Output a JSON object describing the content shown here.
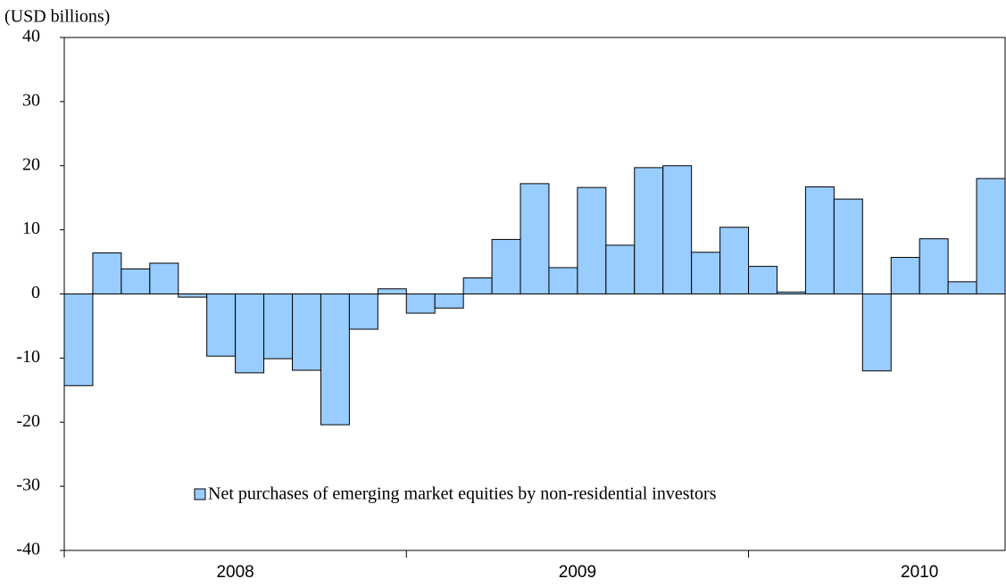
{
  "chart_data": {
    "type": "bar",
    "y_axis_label": "(USD billions)",
    "categories": [
      null,
      null,
      null,
      null,
      null,
      null,
      null,
      null,
      null,
      null,
      null,
      null,
      null,
      null,
      null,
      null,
      null,
      null,
      null,
      null,
      null,
      null,
      null,
      null,
      null,
      null,
      null,
      null,
      null,
      null,
      null,
      null,
      null
    ],
    "x_groups": [
      "2008",
      "2009",
      "2010"
    ],
    "series": [
      {
        "name": "Net purchases of emerging market equities by non-residential investors",
        "color": "#99ccff",
        "values": [
          -14.3,
          6.4,
          3.9,
          4.8,
          -0.5,
          -9.7,
          -12.3,
          -10.1,
          -11.9,
          -20.4,
          -5.5,
          0.8,
          -3.0,
          -2.2,
          2.5,
          8.5,
          17.2,
          4.1,
          16.6,
          7.6,
          19.7,
          20.0,
          6.5,
          10.4,
          4.3,
          0.3,
          16.7,
          14.8,
          -12.0,
          5.7,
          8.6,
          1.9,
          18.0
        ]
      }
    ],
    "ylim": [
      -40,
      40
    ],
    "yticks": [
      -40,
      -30,
      -20,
      -10,
      0,
      10,
      20,
      30,
      40
    ],
    "grid": false,
    "legend": "lower center"
  }
}
